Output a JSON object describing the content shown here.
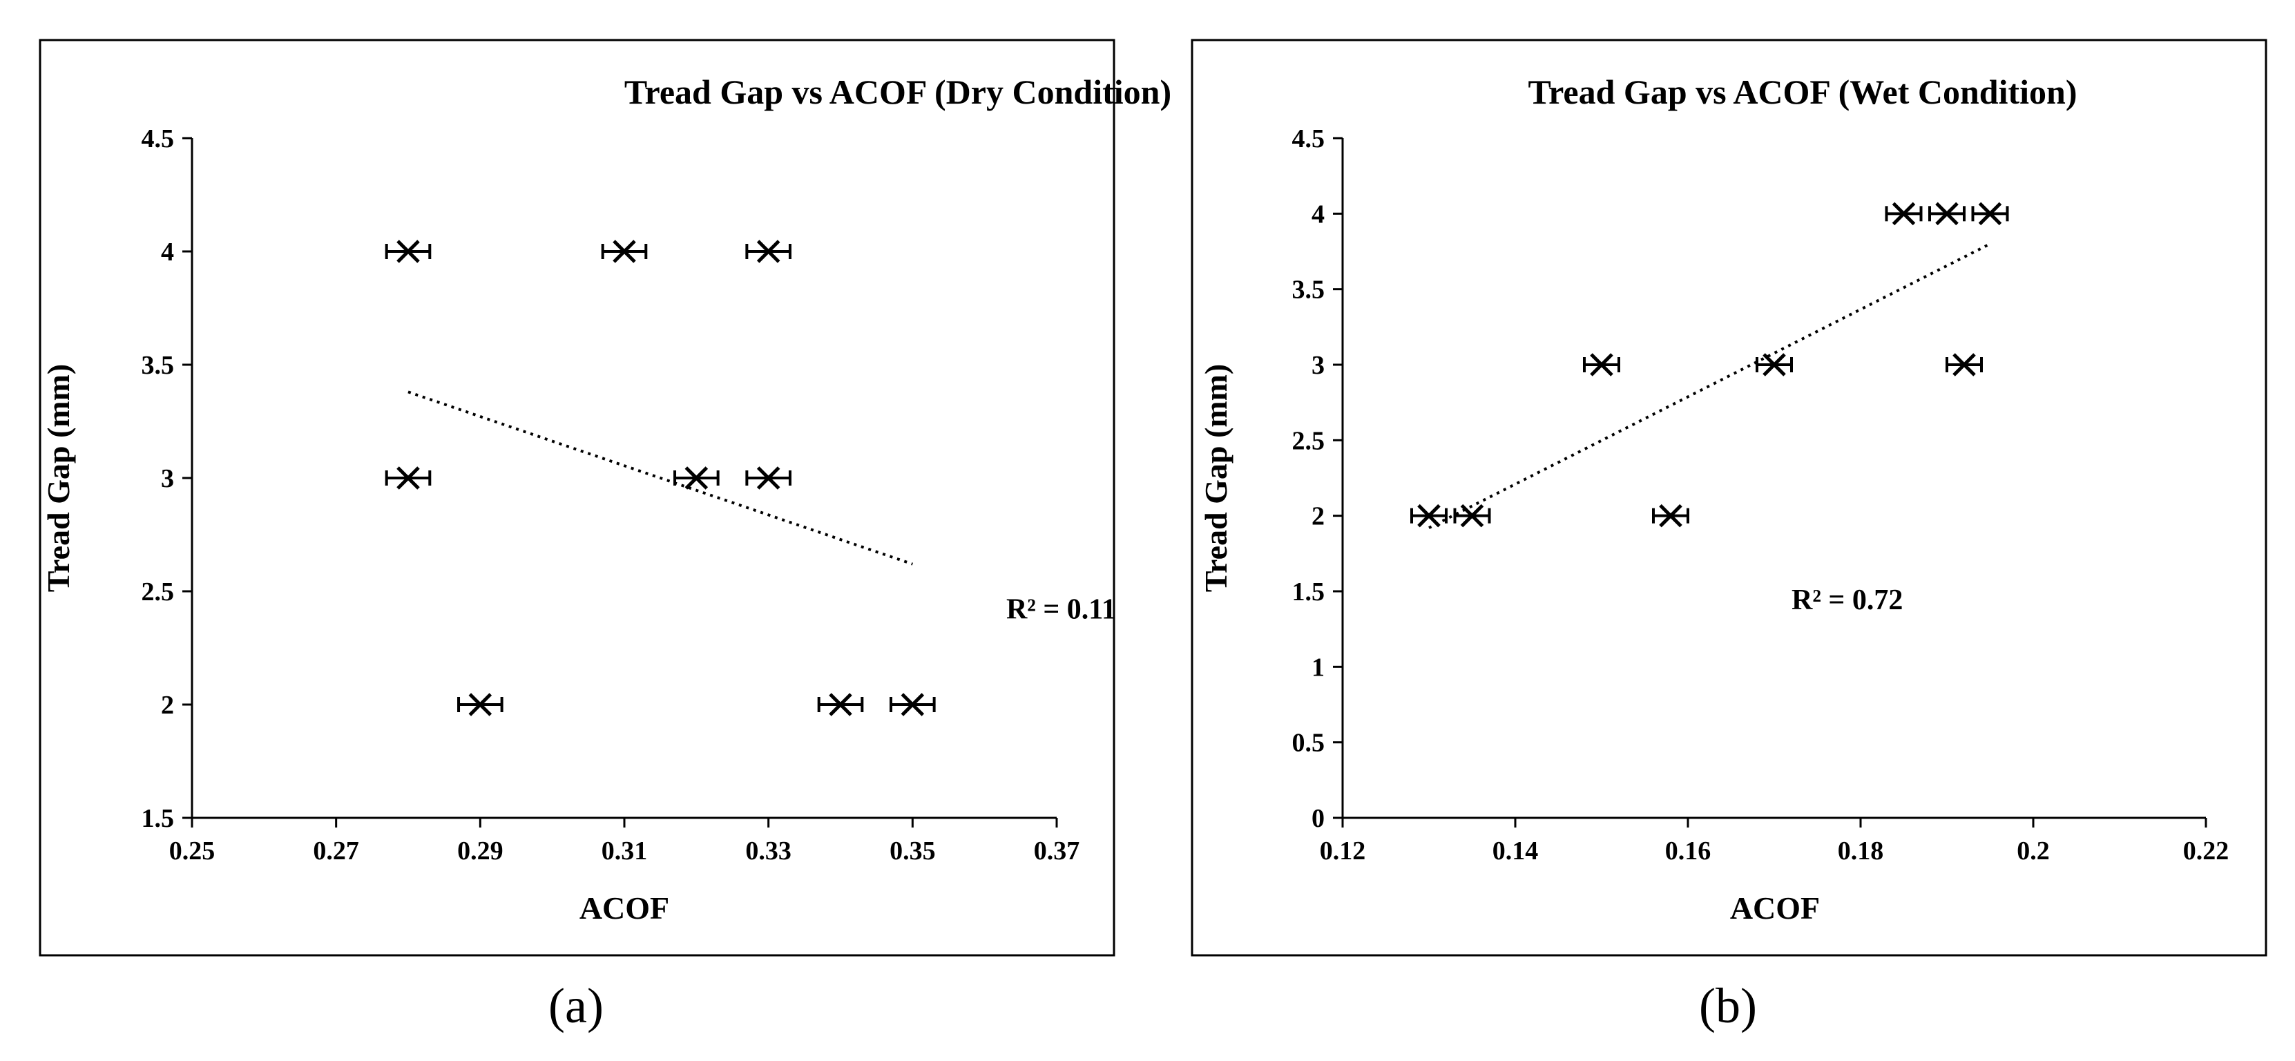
{
  "chart_data": [
    {
      "type": "scatter",
      "panel_label": "(a)",
      "title": "Tread Gap vs ACOF (Dry Condition)",
      "xlabel": "ACOF",
      "ylabel": "Tread Gap (mm)",
      "xlim": [
        0.25,
        0.37
      ],
      "ylim": [
        1.5,
        4.5
      ],
      "xticks": [
        0.25,
        0.27,
        0.29,
        0.31,
        0.33,
        0.35,
        0.37
      ],
      "xtick_labels": [
        "0.25",
        "0.27",
        "0.29",
        "0.31",
        "0.33",
        "0.35",
        "0.37"
      ],
      "yticks": [
        1.5,
        2,
        2.5,
        3,
        3.5,
        4,
        4.5
      ],
      "ytick_labels": [
        "1.5",
        "2",
        "2.5",
        "3",
        "3.5",
        "4",
        "4.5"
      ],
      "grid": false,
      "marker": "x",
      "error_bar_x": 0.003,
      "points": [
        {
          "x": 0.28,
          "y": 4
        },
        {
          "x": 0.31,
          "y": 4
        },
        {
          "x": 0.33,
          "y": 4
        },
        {
          "x": 0.28,
          "y": 3
        },
        {
          "x": 0.32,
          "y": 3
        },
        {
          "x": 0.33,
          "y": 3
        },
        {
          "x": 0.29,
          "y": 2
        },
        {
          "x": 0.34,
          "y": 2
        },
        {
          "x": 0.35,
          "y": 2
        }
      ],
      "trendline": {
        "style": "dotted",
        "x": [
          0.28,
          0.35
        ],
        "y": [
          3.38,
          2.62
        ]
      },
      "r2_text": "R² = 0.11",
      "r2_anchor": {
        "x": 0.363,
        "y": 2.38
      }
    },
    {
      "type": "scatter",
      "panel_label": "(b)",
      "title": "Tread Gap vs ACOF (Wet Condition)",
      "xlabel": "ACOF",
      "ylabel": "Tread Gap (mm)",
      "xlim": [
        0.12,
        0.22
      ],
      "ylim": [
        0,
        4.5
      ],
      "xticks": [
        0.12,
        0.14,
        0.16,
        0.18,
        0.2,
        0.22
      ],
      "xtick_labels": [
        "0.12",
        "0.14",
        "0.16",
        "0.18",
        "0.2",
        "0.22"
      ],
      "yticks": [
        0,
        0.5,
        1,
        1.5,
        2,
        2.5,
        3,
        3.5,
        4,
        4.5
      ],
      "ytick_labels": [
        "0",
        "0.5",
        "1",
        "1.5",
        "2",
        "2.5",
        "3",
        "3.5",
        "4",
        "4.5"
      ],
      "grid": false,
      "marker": "x",
      "error_bar_x": 0.002,
      "points": [
        {
          "x": 0.13,
          "y": 2
        },
        {
          "x": 0.135,
          "y": 2
        },
        {
          "x": 0.158,
          "y": 2
        },
        {
          "x": 0.15,
          "y": 3
        },
        {
          "x": 0.17,
          "y": 3
        },
        {
          "x": 0.192,
          "y": 3
        },
        {
          "x": 0.185,
          "y": 4
        },
        {
          "x": 0.19,
          "y": 4
        },
        {
          "x": 0.195,
          "y": 4
        }
      ],
      "trendline": {
        "style": "dotted",
        "x": [
          0.13,
          0.195
        ],
        "y": [
          1.92,
          3.8
        ]
      },
      "r2_text": "R² = 0.72",
      "r2_anchor": {
        "x": 0.172,
        "y": 1.38
      }
    }
  ]
}
